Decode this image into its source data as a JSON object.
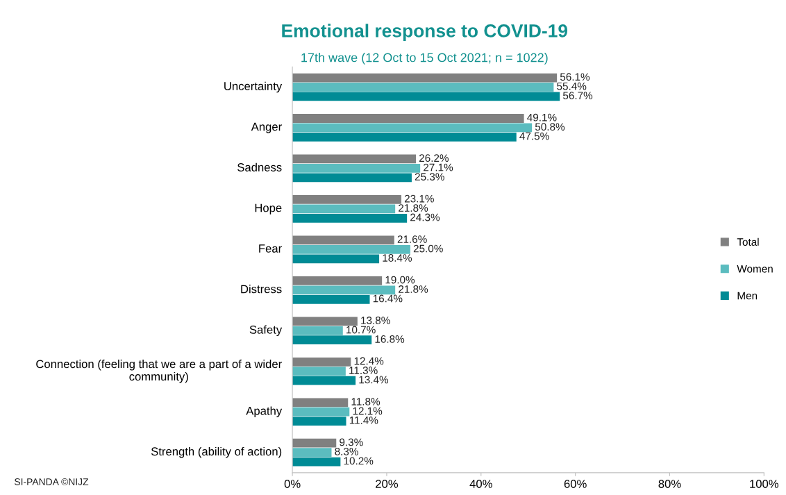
{
  "chart_data": {
    "type": "bar",
    "orientation": "horizontal",
    "title": "Emotional response to COVID-19",
    "subtitle": "17th wave (12 Oct to 15 Oct 2021; n = 1022)",
    "categories": [
      "Uncertainty",
      "Anger",
      "Sadness",
      "Hope",
      "Fear",
      "Distress",
      "Safety",
      "Connection (feeling that we are a part of a wider community)",
      "Apathy",
      "Strength (ability of action)"
    ],
    "series": [
      {
        "name": "Total",
        "color": "#808080",
        "values": [
          56.1,
          49.1,
          26.2,
          23.1,
          21.6,
          19.0,
          13.8,
          12.4,
          11.8,
          9.3
        ],
        "value_labels": [
          "56.1%",
          "49.1%",
          "26.2%",
          "23.1%",
          "21.6%",
          "19.0%",
          "13.8%",
          "12.4%",
          "11.8%",
          "9.3%"
        ]
      },
      {
        "name": "Women",
        "color": "#5bbcbf",
        "values": [
          55.4,
          50.8,
          27.1,
          21.8,
          25.0,
          21.8,
          10.7,
          11.3,
          12.1,
          8.3
        ],
        "value_labels": [
          "55.4%",
          "50.8%",
          "27.1%",
          "21.8%",
          "25.0%",
          "21.8%",
          "10.7%",
          "11.3%",
          "12.1%",
          "8.3%"
        ]
      },
      {
        "name": "Men",
        "color": "#008b95",
        "values": [
          56.7,
          47.5,
          25.3,
          24.3,
          18.4,
          16.4,
          16.8,
          13.4,
          11.4,
          10.2
        ],
        "value_labels": [
          "56.7%",
          "47.5%",
          "25.3%",
          "24.3%",
          "18.4%",
          "16.4%",
          "16.8%",
          "13.4%",
          "11.4%",
          "10.2%"
        ]
      }
    ],
    "xlim": [
      0,
      100
    ],
    "xticks": [
      {
        "value": 0,
        "label": "0%"
      },
      {
        "value": 20,
        "label": "20%"
      },
      {
        "value": 40,
        "label": "40%"
      },
      {
        "value": 60,
        "label": "60%"
      },
      {
        "value": 80,
        "label": "80%"
      },
      {
        "value": 100,
        "label": "100%"
      }
    ],
    "legend": "right",
    "grid": false,
    "annotations": [
      "SI-PANDA ©NIJZ"
    ]
  }
}
